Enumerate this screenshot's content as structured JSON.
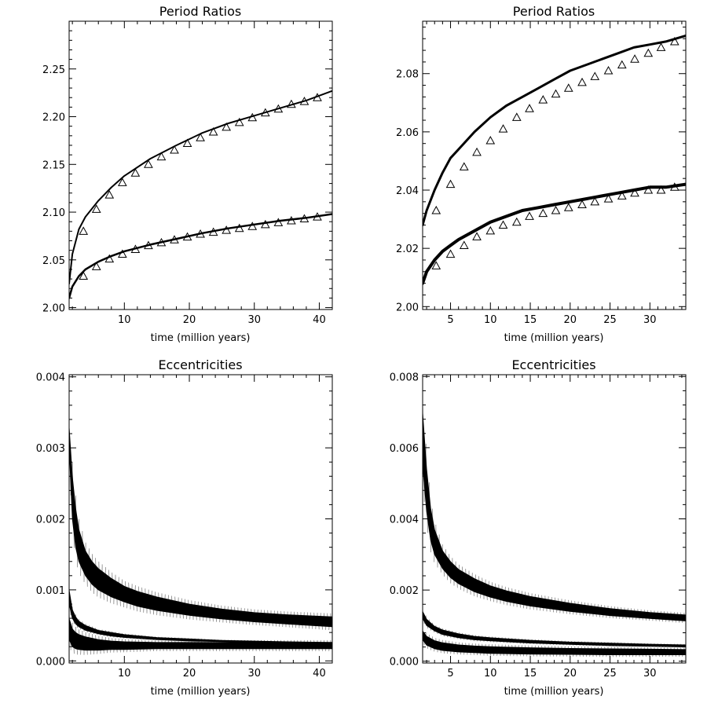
{
  "chart_data": [
    {
      "type": "line",
      "title": "Period Ratios",
      "xlabel": "time (million years)",
      "ylabel": "",
      "xlim": [
        1.5,
        42
      ],
      "ylim": [
        1.998,
        2.3
      ],
      "xticks": [
        10,
        20,
        30,
        40
      ],
      "yticks": [
        2.0,
        2.05,
        2.1,
        2.15,
        2.2,
        2.25
      ],
      "ytick_labels": [
        "2.00",
        "2.05",
        "2.10",
        "2.15",
        "2.20",
        "2.25"
      ],
      "series": [
        {
          "name": "upper",
          "kind": "line",
          "x": [
            1.5,
            2,
            3,
            4,
            6,
            8,
            10,
            14,
            18,
            22,
            26,
            30,
            34,
            38,
            42
          ],
          "y": [
            2.025,
            2.056,
            2.082,
            2.095,
            2.112,
            2.126,
            2.138,
            2.156,
            2.17,
            2.183,
            2.193,
            2.201,
            2.209,
            2.217,
            2.227
          ],
          "stroke": 2
        },
        {
          "name": "lower",
          "kind": "line",
          "x": [
            1.5,
            2,
            3,
            4,
            6,
            8,
            10,
            14,
            18,
            22,
            26,
            30,
            34,
            38,
            42
          ],
          "y": [
            2.01,
            2.022,
            2.033,
            2.04,
            2.048,
            2.054,
            2.059,
            2.066,
            2.072,
            2.078,
            2.083,
            2.087,
            2.091,
            2.094,
            2.098
          ],
          "stroke": 2.5
        },
        {
          "name": "upper-markers",
          "kind": "triangle",
          "x": [
            3.7,
            5.7,
            7.7,
            9.7,
            11.7,
            13.7,
            15.7,
            17.7,
            19.7,
            21.7,
            23.7,
            25.7,
            27.7,
            29.7,
            31.7,
            33.7,
            35.7,
            37.7,
            39.7
          ],
          "y": [
            2.08,
            2.103,
            2.118,
            2.131,
            2.141,
            2.15,
            2.158,
            2.165,
            2.172,
            2.178,
            2.184,
            2.189,
            2.194,
            2.199,
            2.204,
            2.208,
            2.213,
            2.216,
            2.22
          ]
        },
        {
          "name": "lower-markers",
          "kind": "triangle",
          "x": [
            3.7,
            5.7,
            7.7,
            9.7,
            11.7,
            13.7,
            15.7,
            17.7,
            19.7,
            21.7,
            23.7,
            25.7,
            27.7,
            29.7,
            31.7,
            33.7,
            35.7,
            37.7,
            39.7
          ],
          "y": [
            2.033,
            2.043,
            2.051,
            2.056,
            2.061,
            2.065,
            2.068,
            2.071,
            2.074,
            2.077,
            2.079,
            2.081,
            2.083,
            2.085,
            2.087,
            2.089,
            2.091,
            2.093,
            2.095
          ]
        }
      ]
    },
    {
      "type": "line",
      "title": "Period Ratios",
      "xlabel": "time (million years)",
      "ylabel": "",
      "xlim": [
        1.5,
        34.5
      ],
      "ylim": [
        1.999,
        2.098
      ],
      "xticks": [
        5,
        10,
        15,
        20,
        25,
        30
      ],
      "yticks": [
        2.0,
        2.02,
        2.04,
        2.06,
        2.08
      ],
      "ytick_labels": [
        "2.00",
        "2.02",
        "2.04",
        "2.06",
        "2.08"
      ],
      "series": [
        {
          "name": "upper",
          "kind": "line",
          "x": [
            1.5,
            2,
            3,
            4,
            5,
            6,
            8,
            10,
            12,
            14,
            16,
            18,
            20,
            22,
            24,
            26,
            28,
            30,
            32,
            34.5
          ],
          "y": [
            2.028,
            2.033,
            2.04,
            2.046,
            2.051,
            2.054,
            2.06,
            2.065,
            2.069,
            2.072,
            2.075,
            2.078,
            2.081,
            2.083,
            2.085,
            2.087,
            2.089,
            2.09,
            2.091,
            2.093
          ],
          "stroke": 3
        },
        {
          "name": "lower",
          "kind": "line",
          "x": [
            1.5,
            2,
            3,
            4,
            5,
            6,
            8,
            10,
            12,
            14,
            16,
            18,
            20,
            22,
            24,
            26,
            28,
            30,
            32,
            34.5
          ],
          "y": [
            2.008,
            2.012,
            2.016,
            2.019,
            2.021,
            2.023,
            2.026,
            2.029,
            2.031,
            2.033,
            2.034,
            2.035,
            2.036,
            2.037,
            2.038,
            2.039,
            2.04,
            2.041,
            2.041,
            2.042
          ],
          "stroke": 4
        },
        {
          "name": "upper-markers",
          "kind": "triangle",
          "x": [
            3.2,
            5,
            6.7,
            8.3,
            10,
            11.6,
            13.3,
            14.9,
            16.6,
            18.2,
            19.8,
            21.5,
            23.1,
            24.8,
            26.5,
            28.1,
            29.8,
            31.4,
            33.1
          ],
          "y": [
            2.033,
            2.042,
            2.048,
            2.053,
            2.057,
            2.061,
            2.065,
            2.068,
            2.071,
            2.073,
            2.075,
            2.077,
            2.079,
            2.081,
            2.083,
            2.085,
            2.087,
            2.089,
            2.091
          ]
        },
        {
          "name": "lower-markers",
          "kind": "triangle",
          "x": [
            3.2,
            5,
            6.7,
            8.3,
            10,
            11.6,
            13.3,
            14.9,
            16.6,
            18.2,
            19.8,
            21.5,
            23.1,
            24.8,
            26.5,
            28.1,
            29.8,
            31.4,
            33.1
          ],
          "y": [
            2.014,
            2.018,
            2.021,
            2.024,
            2.026,
            2.028,
            2.029,
            2.031,
            2.032,
            2.033,
            2.034,
            2.035,
            2.036,
            2.037,
            2.038,
            2.039,
            2.04,
            2.04,
            2.041
          ]
        }
      ]
    },
    {
      "type": "area",
      "title": "Eccentricities",
      "xlabel": "time (million years)",
      "ylabel": "",
      "xlim": [
        1.5,
        42
      ],
      "ylim": [
        -3e-05,
        0.00403
      ],
      "xticks": [
        10,
        20,
        30,
        40
      ],
      "yticks": [
        0.0,
        0.001,
        0.002,
        0.003,
        0.004
      ],
      "ytick_labels": [
        "0.000",
        "0.001",
        "0.002",
        "0.003",
        "0.004"
      ],
      "series": [
        {
          "name": "band-1",
          "x": [
            1.5,
            2,
            2.5,
            3,
            4,
            5,
            6,
            8,
            10,
            12,
            15,
            20,
            25,
            30,
            35,
            42
          ],
          "lo": [
            0.003,
            0.002,
            0.0016,
            0.0014,
            0.0012,
            0.00108,
            0.001,
            0.0009,
            0.00083,
            0.00077,
            0.00071,
            0.00064,
            0.00059,
            0.00055,
            0.00052,
            0.00048
          ],
          "hi": [
            0.0033,
            0.0026,
            0.00215,
            0.00185,
            0.00155,
            0.0014,
            0.0013,
            0.00116,
            0.00105,
            0.00098,
            0.0009,
            0.0008,
            0.00073,
            0.00068,
            0.00065,
            0.00062
          ]
        },
        {
          "name": "band-2",
          "x": [
            1.5,
            2,
            2.5,
            3,
            4,
            6,
            8,
            10,
            15,
            20,
            25,
            30,
            35,
            42
          ],
          "lo": [
            0.0008,
            0.0006,
            0.00052,
            0.00048,
            0.00043,
            0.00038,
            0.00035,
            0.00033,
            0.0003,
            0.00028,
            0.00027,
            0.00026,
            0.00025,
            0.00025
          ],
          "hi": [
            0.001,
            0.00072,
            0.00062,
            0.00056,
            0.0005,
            0.00043,
            0.0004,
            0.00037,
            0.00033,
            0.00031,
            0.00029,
            0.00028,
            0.00027,
            0.00026
          ]
        },
        {
          "name": "band-3",
          "x": [
            1.5,
            2,
            2.5,
            3,
            4,
            6,
            8,
            10,
            15,
            20,
            25,
            30,
            35,
            42
          ],
          "lo": [
            0.0003,
            0.0002,
            0.00017,
            0.00016,
            0.00015,
            0.00015,
            0.00016,
            0.00016,
            0.00017,
            0.00017,
            0.00017,
            0.00017,
            0.00017,
            0.00017
          ],
          "hi": [
            0.0006,
            0.00045,
            0.0004,
            0.00037,
            0.00034,
            0.0003,
            0.00028,
            0.00027,
            0.00026,
            0.00026,
            0.00026,
            0.00026,
            0.00026,
            0.00026
          ]
        }
      ]
    },
    {
      "type": "area",
      "title": "Eccentricities",
      "xlabel": "time (million years)",
      "ylabel": "",
      "xlim": [
        1.5,
        34.5
      ],
      "ylim": [
        -5e-05,
        0.00805
      ],
      "xticks": [
        5,
        10,
        15,
        20,
        25,
        30
      ],
      "yticks": [
        0.0,
        0.002,
        0.004,
        0.006,
        0.008
      ],
      "ytick_labels": [
        "0.000",
        "0.002",
        "0.004",
        "0.006",
        "0.008"
      ],
      "series": [
        {
          "name": "band-1",
          "x": [
            1.5,
            2,
            2.5,
            3,
            4,
            5,
            6,
            8,
            10,
            12,
            15,
            20,
            25,
            30,
            34.5
          ],
          "lo": [
            0.0055,
            0.0042,
            0.0034,
            0.003,
            0.0026,
            0.00235,
            0.00218,
            0.00195,
            0.0018,
            0.00168,
            0.00155,
            0.0014,
            0.00128,
            0.0012,
            0.00113
          ],
          "hi": [
            0.007,
            0.0054,
            0.0043,
            0.0037,
            0.0031,
            0.0028,
            0.00258,
            0.00232,
            0.00212,
            0.00198,
            0.00182,
            0.00163,
            0.00148,
            0.00137,
            0.0013
          ]
        },
        {
          "name": "band-2",
          "x": [
            1.5,
            2,
            3,
            4,
            6,
            8,
            10,
            15,
            20,
            25,
            30,
            34.5
          ],
          "lo": [
            0.0012,
            0.001,
            0.00085,
            0.00075,
            0.00066,
            0.0006,
            0.00057,
            0.00051,
            0.00047,
            0.00044,
            0.00042,
            0.0004
          ],
          "hi": [
            0.0014,
            0.00118,
            0.00098,
            0.00088,
            0.00077,
            0.0007,
            0.00066,
            0.00059,
            0.00054,
            0.00051,
            0.00048,
            0.00046
          ]
        },
        {
          "name": "band-3",
          "x": [
            1.5,
            2,
            3,
            4,
            6,
            8,
            10,
            15,
            20,
            25,
            30,
            34.5
          ],
          "lo": [
            0.0006,
            0.00045,
            0.00035,
            0.0003,
            0.00026,
            0.00024,
            0.00022,
            0.0002,
            0.00019,
            0.00018,
            0.00018,
            0.00018
          ],
          "hi": [
            0.00085,
            0.0007,
            0.00058,
            0.00052,
            0.00046,
            0.00043,
            0.00041,
            0.00038,
            0.00036,
            0.00035,
            0.00034,
            0.00033
          ]
        }
      ]
    }
  ]
}
